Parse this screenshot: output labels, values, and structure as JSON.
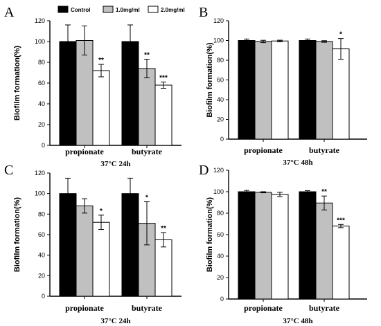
{
  "colors": {
    "control": "#000000",
    "low": "#c0c0c0",
    "high": "#ffffff",
    "axis": "#000000"
  },
  "legend": {
    "items": [
      {
        "label": "Control",
        "color": "#000000"
      },
      {
        "label": "1.0mg/ml",
        "color": "#c0c0c0"
      },
      {
        "label": "2.0mg/ml",
        "color": "#ffffff"
      }
    ]
  },
  "chart_data": [
    {
      "panel": "A",
      "type": "bar",
      "condition": "37°C 24h",
      "ylabel": "Biofilm formation(%)",
      "ylim": [
        0,
        120
      ],
      "yticks": [
        0,
        20,
        40,
        60,
        80,
        100,
        120
      ],
      "categories": [
        "propionate",
        "butyrate"
      ],
      "series": [
        {
          "values": [
            100,
            100
          ],
          "errors": [
            16,
            16
          ],
          "sig": [
            "",
            ""
          ]
        },
        {
          "values": [
            101,
            74
          ],
          "errors": [
            14,
            9
          ],
          "sig": [
            "",
            "**"
          ]
        },
        {
          "values": [
            72,
            58
          ],
          "errors": [
            6,
            3
          ],
          "sig": [
            "**",
            "***"
          ]
        }
      ]
    },
    {
      "panel": "B",
      "type": "bar",
      "condition": "37°C 48h",
      "ylabel": "Biofilm formation(%)",
      "ylim": [
        0,
        120
      ],
      "yticks": [
        0,
        20,
        40,
        60,
        80,
        100,
        120
      ],
      "categories": [
        "propionate",
        "butyrate"
      ],
      "series": [
        {
          "values": [
            100,
            100
          ],
          "errors": [
            1.5,
            1.5
          ],
          "sig": [
            "",
            ""
          ]
        },
        {
          "values": [
            99,
            99
          ],
          "errors": [
            1.2,
            0.8
          ],
          "sig": [
            "",
            ""
          ]
        },
        {
          "values": [
            99.5,
            91.5
          ],
          "errors": [
            0.8,
            10.5
          ],
          "sig": [
            "",
            "*"
          ]
        }
      ]
    },
    {
      "panel": "C",
      "type": "bar",
      "condition": "37°C 24h",
      "ylabel": "Biofilm formation(%)",
      "ylim": [
        0,
        120
      ],
      "yticks": [
        0,
        20,
        40,
        60,
        80,
        100,
        120
      ],
      "categories": [
        "propionate",
        "butyrate"
      ],
      "series": [
        {
          "values": [
            100,
            100
          ],
          "errors": [
            15,
            15
          ],
          "sig": [
            "",
            ""
          ]
        },
        {
          "values": [
            88,
            71
          ],
          "errors": [
            7,
            21
          ],
          "sig": [
            "",
            "*"
          ]
        },
        {
          "values": [
            72,
            55
          ],
          "errors": [
            7,
            7
          ],
          "sig": [
            "*",
            "**"
          ]
        }
      ]
    },
    {
      "panel": "D",
      "type": "bar",
      "condition": "37°C 48h",
      "ylabel": "Biofilm formation(%)",
      "ylim": [
        0,
        120
      ],
      "yticks": [
        0,
        20,
        40,
        60,
        80,
        100,
        120
      ],
      "categories": [
        "propionate",
        "butyrate"
      ],
      "series": [
        {
          "values": [
            100,
            100
          ],
          "errors": [
            1.2,
            1
          ],
          "sig": [
            "",
            ""
          ]
        },
        {
          "values": [
            99.5,
            89.5
          ],
          "errors": [
            0.5,
            6.5
          ],
          "sig": [
            "",
            "**"
          ]
        },
        {
          "values": [
            97.5,
            68
          ],
          "errors": [
            2,
            1.5
          ],
          "sig": [
            "",
            "***"
          ]
        }
      ]
    }
  ]
}
